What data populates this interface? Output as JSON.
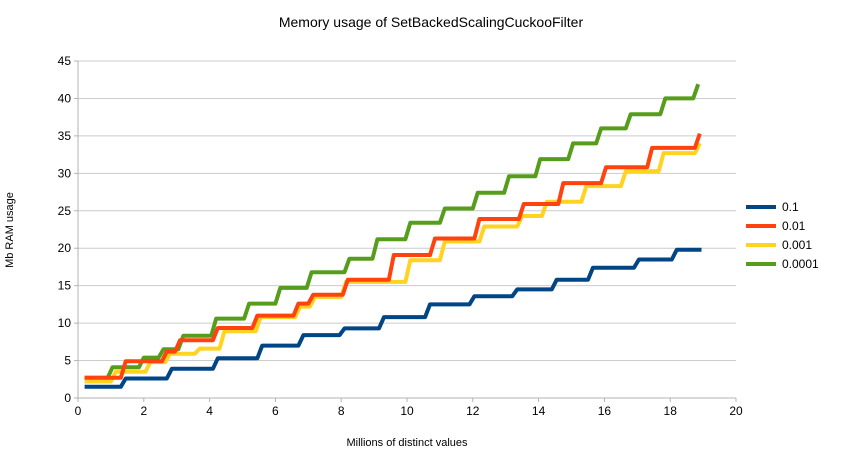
{
  "window": {
    "background": "#ffffff"
  },
  "palette": {
    "axis_line": "#b3b3b3",
    "grid_line": "#cccccc",
    "text": "#000000"
  },
  "chart_data": {
    "type": "line",
    "style": "step-staircase",
    "title": "Memory usage of SetBackedScalingCuckooFilter",
    "xlabel": "Millions of distinct values",
    "ylabel": "Mb RAM usage",
    "xlim": [
      0,
      20
    ],
    "ylim": [
      0,
      45
    ],
    "x_ticks": [
      0,
      2,
      4,
      6,
      8,
      10,
      12,
      14,
      16,
      18,
      20
    ],
    "y_ticks": [
      0,
      5,
      10,
      15,
      20,
      25,
      30,
      35,
      40,
      45
    ],
    "grid": "horizontal",
    "legend_position": "right",
    "riser_run": 0.15,
    "series": [
      {
        "name": "0.1",
        "color": "#004586",
        "x_end": 18.95,
        "points": [
          [
            0.2,
            1.5
          ],
          [
            1.3,
            2.6
          ],
          [
            2.7,
            3.9
          ],
          [
            4.1,
            5.3
          ],
          [
            5.45,
            7.0
          ],
          [
            6.7,
            8.4
          ],
          [
            7.95,
            9.3
          ],
          [
            9.15,
            10.8
          ],
          [
            10.55,
            12.5
          ],
          [
            11.9,
            13.6
          ],
          [
            13.2,
            14.5
          ],
          [
            14.4,
            15.8
          ],
          [
            15.5,
            17.4
          ],
          [
            16.9,
            18.5
          ],
          [
            18.05,
            19.8
          ]
        ]
      },
      {
        "name": "0.01",
        "color": "#FF420E",
        "x_end": 18.9,
        "points": [
          [
            0.2,
            2.7
          ],
          [
            1.3,
            4.9
          ],
          [
            2.55,
            6.2
          ],
          [
            2.95,
            7.7
          ],
          [
            4.1,
            9.35
          ],
          [
            5.3,
            11.0
          ],
          [
            6.55,
            12.6
          ],
          [
            7.0,
            13.8
          ],
          [
            8.05,
            15.8
          ],
          [
            9.45,
            19.1
          ],
          [
            10.7,
            21.3
          ],
          [
            12.05,
            23.9
          ],
          [
            13.4,
            25.9
          ],
          [
            14.6,
            28.7
          ],
          [
            15.9,
            30.8
          ],
          [
            17.3,
            33.4
          ],
          [
            18.75,
            35.3
          ]
        ]
      },
      {
        "name": "0.001",
        "color": "#FFD320",
        "x_end": 18.9,
        "points": [
          [
            0.2,
            2.2
          ],
          [
            1.0,
            3.5
          ],
          [
            2.05,
            4.8
          ],
          [
            2.65,
            5.9
          ],
          [
            3.55,
            6.6
          ],
          [
            4.3,
            8.9
          ],
          [
            5.4,
            10.8
          ],
          [
            6.6,
            12.2
          ],
          [
            7.05,
            13.5
          ],
          [
            8.0,
            15.5
          ],
          [
            9.95,
            18.4
          ],
          [
            11.0,
            20.9
          ],
          [
            12.2,
            22.9
          ],
          [
            13.35,
            24.3
          ],
          [
            14.1,
            26.2
          ],
          [
            15.3,
            28.3
          ],
          [
            16.5,
            30.3
          ],
          [
            17.65,
            32.7
          ],
          [
            18.75,
            34.0
          ]
        ]
      },
      {
        "name": "0.0001",
        "color": "#579D1C",
        "x_end": 18.85,
        "points": [
          [
            0.2,
            2.7
          ],
          [
            0.9,
            4.1
          ],
          [
            1.85,
            5.4
          ],
          [
            2.45,
            6.5
          ],
          [
            3.05,
            8.3
          ],
          [
            4.05,
            10.6
          ],
          [
            5.05,
            12.6
          ],
          [
            6.0,
            14.7
          ],
          [
            6.95,
            16.8
          ],
          [
            8.1,
            18.6
          ],
          [
            8.95,
            21.2
          ],
          [
            9.95,
            23.4
          ],
          [
            11.0,
            25.3
          ],
          [
            12.0,
            27.4
          ],
          [
            12.95,
            29.6
          ],
          [
            13.9,
            31.9
          ],
          [
            14.9,
            34.0
          ],
          [
            15.75,
            36.0
          ],
          [
            16.65,
            37.9
          ],
          [
            17.7,
            40.0
          ],
          [
            18.7,
            41.9
          ]
        ]
      }
    ]
  }
}
